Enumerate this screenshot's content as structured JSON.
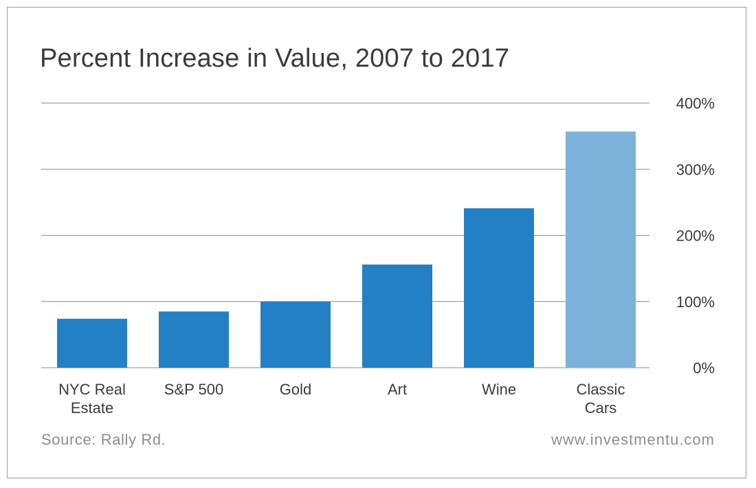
{
  "chart_data": {
    "type": "bar",
    "title": "Percent Increase in Value, 2007 to 2017",
    "categories": [
      [
        "NYC Real",
        "Estate"
      ],
      [
        "S&P 500"
      ],
      [
        "Gold"
      ],
      [
        "Art"
      ],
      [
        "Wine"
      ],
      [
        "Classic",
        "Cars"
      ]
    ],
    "values": [
      74,
      85,
      100,
      156,
      241,
      357
    ],
    "y_ticks": [
      "0%",
      "100%",
      "200%",
      "300%",
      "400%"
    ],
    "ylim": [
      0,
      400
    ],
    "y_axis_side": "right",
    "grid": true,
    "xlabel": "",
    "ylabel": "",
    "colors": {
      "bar": "#2480c4",
      "highlight": "#7db2db",
      "grid": "#8a8a8a"
    },
    "highlight_index": 5
  },
  "footer": {
    "source": "Source: Rally Rd.",
    "website": "www.investmentu.com"
  }
}
